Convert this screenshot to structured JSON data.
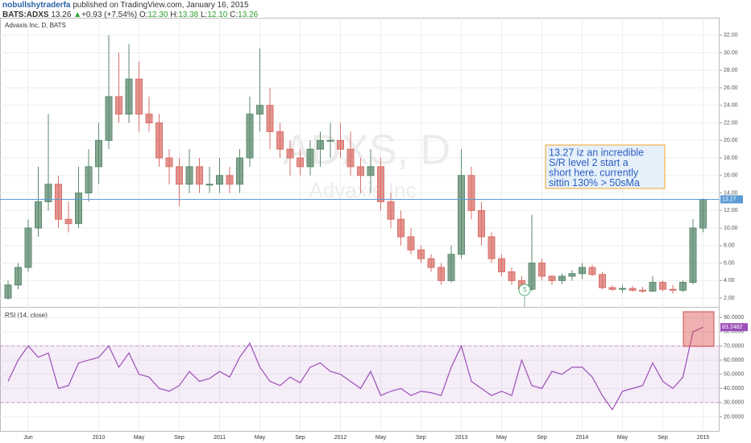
{
  "header": {
    "user": "nobullshytraderfa",
    "published": "published on TradingView.com, January 16, 2015",
    "symbol": "BATS:ADXS",
    "last": "13.26",
    "arrow": "▲",
    "change": "+0.93 (+7.54%)",
    "o_label": "O:",
    "o": "12.30",
    "h_label": "H:",
    "h": "13.38",
    "l_label": "L:",
    "l": "12.10",
    "c_label": "C:",
    "c": "13.26"
  },
  "chart_data": [
    {
      "type": "candlestick",
      "title": "Advaxis Inc, D, BATS",
      "watermark": "ADXS, D",
      "watermark_sub": "Advaxis Inc",
      "categories": [
        null,
        null,
        "Jun",
        null,
        null,
        null,
        null,
        null,
        null,
        "2010",
        null,
        null,
        null,
        "May",
        null,
        null,
        null,
        "Sep",
        null,
        null,
        null,
        "2011",
        null,
        null,
        null,
        "May",
        null,
        null,
        null,
        "Sep",
        null,
        null,
        null,
        "2012",
        null,
        null,
        null,
        "May",
        null,
        null,
        null,
        "Sep",
        null,
        null,
        null,
        "2013",
        null,
        null,
        null,
        "May",
        null,
        null,
        null,
        "Sep",
        null,
        null,
        null,
        "2014",
        null,
        null,
        null,
        "May",
        null,
        null,
        null,
        "Sep",
        null,
        null,
        null,
        "2015"
      ],
      "open": [
        2,
        3.5,
        5.5,
        10,
        13,
        15,
        11,
        10.5,
        14,
        17,
        20,
        25,
        23,
        27,
        23,
        22,
        18,
        17,
        15,
        17,
        15,
        15,
        16,
        15,
        18,
        23,
        24,
        21,
        19,
        18,
        17,
        19,
        20,
        20,
        19,
        17,
        16,
        17,
        13,
        11,
        9,
        7.5,
        6.5,
        5.5,
        4,
        7,
        16,
        12,
        9,
        6.5,
        5,
        4,
        3,
        6,
        4.5,
        4,
        4.5,
        4.8,
        5.5,
        4.7,
        3.2,
        3,
        3.1,
        2.9,
        2.8,
        3.8,
        3,
        2.9,
        3.8,
        10
      ],
      "high": [
        4,
        6,
        11,
        17,
        23,
        16,
        13,
        17,
        19,
        22,
        32,
        30,
        31,
        29,
        25,
        23,
        19,
        18,
        19,
        18,
        17,
        18,
        17,
        19,
        25,
        30.5,
        26,
        22,
        20,
        19,
        20,
        21,
        22,
        22,
        21,
        18,
        19,
        18,
        14,
        12,
        10,
        8,
        7,
        6,
        8,
        19,
        17,
        13,
        9.5,
        7,
        5.5,
        4.5,
        11.5,
        6.5,
        4.6,
        4.8,
        5.2,
        6,
        5.8,
        5,
        3.5,
        3.5,
        3.4,
        3.3,
        4.5,
        4,
        3.5,
        4,
        11,
        13.38
      ],
      "low": [
        1.8,
        3,
        5,
        9,
        12,
        10,
        9.5,
        10,
        13,
        15,
        19,
        22,
        22,
        21,
        21,
        17,
        15,
        12.5,
        14,
        14,
        14,
        14,
        14,
        14,
        17,
        21,
        19,
        18,
        16,
        16,
        16,
        17,
        18,
        18,
        16,
        14,
        14,
        12,
        10,
        8,
        7,
        6,
        5,
        3.5,
        3.8,
        6.5,
        11,
        8,
        6,
        4.5,
        3.5,
        2.5,
        2.8,
        4,
        3.5,
        3.6,
        4,
        4.2,
        4.5,
        3,
        2.8,
        2.6,
        2.7,
        2.6,
        2.7,
        2.8,
        2.5,
        2.7,
        3.6,
        9.5
      ],
      "close": [
        3.5,
        5.5,
        10,
        13,
        15,
        11,
        10.5,
        14,
        17,
        20,
        25,
        23,
        27,
        23,
        22,
        18,
        17,
        15,
        17,
        15,
        15,
        16,
        15,
        18,
        23,
        24,
        21,
        19,
        18,
        17,
        19,
        20,
        20,
        19,
        17,
        16,
        17,
        13,
        11,
        9,
        7.5,
        6.5,
        5.5,
        4,
        7,
        16,
        12,
        9,
        6.5,
        5,
        4,
        3,
        6,
        4.5,
        4,
        4.5,
        4.8,
        5.5,
        4.7,
        3.2,
        3,
        3.1,
        2.9,
        2.8,
        3.8,
        3,
        2.9,
        3.8,
        10,
        13.26
      ],
      "up_color": "#5b8a6e",
      "down_color": "#d9706a",
      "ylim": [
        1,
        34
      ],
      "yticks": [
        {
          "value": 2,
          "label": "2.00"
        },
        {
          "value": 4,
          "label": "4.00"
        },
        {
          "value": 6,
          "label": "6.00"
        },
        {
          "value": 8,
          "label": "8.00"
        },
        {
          "value": 10,
          "label": "10.00"
        },
        {
          "value": 12,
          "label": "12.00"
        },
        {
          "value": 14,
          "label": "14.00"
        },
        {
          "value": 16,
          "label": "16.00"
        },
        {
          "value": 18,
          "label": "18.00"
        },
        {
          "value": 20,
          "label": "20.00"
        },
        {
          "value": 22,
          "label": "22.00"
        },
        {
          "value": 24,
          "label": "24.00"
        },
        {
          "value": 26,
          "label": "26.00"
        },
        {
          "value": 28,
          "label": "28.00"
        },
        {
          "value": 30,
          "label": "30.00"
        },
        {
          "value": 32,
          "label": "32.00"
        }
      ],
      "grid": true,
      "hline": {
        "value": 13.27,
        "label": "13.27",
        "color": "#5b9bd5"
      },
      "annotation": {
        "lines": [
          "13.27 iz an incredible",
          "S/R level 2 start a",
          "short here. currently",
          "sittin 130% > 50sMa"
        ],
        "color": "#2a5dbf"
      },
      "split_label": "S"
    },
    {
      "type": "line",
      "title": "RSI (14, close)",
      "values": [
        45,
        60,
        70,
        62,
        65,
        40,
        42,
        58,
        60,
        62,
        70,
        55,
        65,
        50,
        48,
        40,
        38,
        42,
        52,
        45,
        47,
        52,
        48,
        62,
        72,
        55,
        45,
        42,
        48,
        44,
        55,
        58,
        52,
        50,
        45,
        40,
        52,
        35,
        38,
        40,
        35,
        38,
        37,
        35,
        55,
        70,
        45,
        40,
        35,
        38,
        35,
        60,
        42,
        40,
        52,
        50,
        55,
        55,
        48,
        35,
        25,
        38,
        40,
        42,
        58,
        45,
        40,
        48,
        80,
        83.2482
      ],
      "color": "#9c4fb8",
      "ylim": [
        10,
        97
      ],
      "yticks": [
        {
          "value": 20,
          "label": "20.0000"
        },
        {
          "value": 30,
          "label": "30.0000"
        },
        {
          "value": 40,
          "label": "40.0000"
        },
        {
          "value": 50,
          "label": "50.0000"
        },
        {
          "value": 60,
          "label": "60.0000"
        },
        {
          "value": 70,
          "label": "70.0000"
        },
        {
          "value": 80,
          "label": "80.0000"
        },
        {
          "value": 90,
          "label": "90.0000"
        }
      ],
      "bands": [
        30,
        70
      ],
      "band_color": "#9c4fb8",
      "grid": true
    }
  ]
}
